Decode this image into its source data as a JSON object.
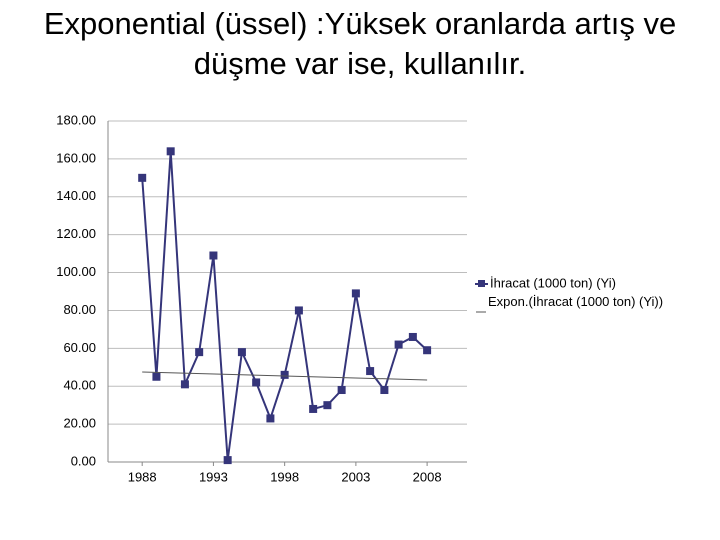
{
  "chart_data": {
    "type": "line",
    "title": "Exponential (üssel) :Yüksek oranlarda artış ve düşme var ise, kullanılır.",
    "x": [
      1988,
      1989,
      1990,
      1991,
      1992,
      1993,
      1994,
      1995,
      1996,
      1997,
      1998,
      1999,
      2000,
      2001,
      2002,
      2003,
      2004,
      2005,
      2006,
      2007,
      2008
    ],
    "series": [
      {
        "name": "İhracat (1000 ton) (Yi)",
        "color": "#35357a",
        "values": [
          150,
          45,
          164,
          41,
          58,
          109,
          1,
          58,
          42,
          23,
          46,
          80,
          28,
          30,
          38,
          89,
          48,
          38,
          62,
          66,
          59
        ]
      },
      {
        "name": "Expon.(İhracat (1000 ton) (Yi))",
        "color": "#555555",
        "x": [
          1988,
          2008
        ],
        "values": [
          47.5,
          43.3
        ]
      }
    ],
    "xlim": [
      1985.6,
      2010.8
    ],
    "xticks": [
      1988,
      1993,
      1998,
      2003,
      2008
    ],
    "ylim": [
      0,
      180
    ],
    "yticks": [
      {
        "value": 0,
        "label": "0.00"
      },
      {
        "value": 20,
        "label": "20.00"
      },
      {
        "value": 40,
        "label": "40.00"
      },
      {
        "value": 60,
        "label": "60.00"
      },
      {
        "value": 80,
        "label": "80.00"
      },
      {
        "value": 100,
        "label": "100.00"
      },
      {
        "value": 120,
        "label": "120.00"
      },
      {
        "value": 140,
        "label": "140.00"
      },
      {
        "value": 160,
        "label": "160.00"
      },
      {
        "value": 180,
        "label": "180.00"
      }
    ],
    "grid": true
  }
}
